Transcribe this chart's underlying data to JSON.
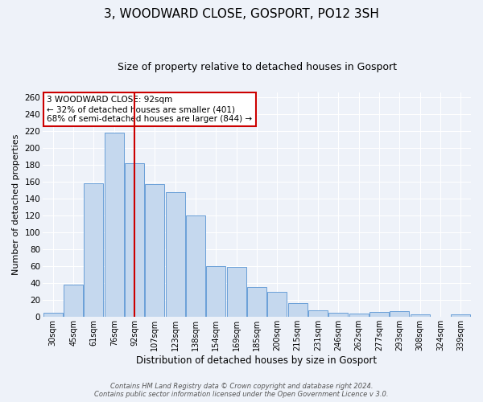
{
  "title": "3, WOODWARD CLOSE, GOSPORT, PO12 3SH",
  "subtitle": "Size of property relative to detached houses in Gosport",
  "xlabel": "Distribution of detached houses by size in Gosport",
  "ylabel": "Number of detached properties",
  "bar_labels": [
    "30sqm",
    "45sqm",
    "61sqm",
    "76sqm",
    "92sqm",
    "107sqm",
    "123sqm",
    "138sqm",
    "154sqm",
    "169sqm",
    "185sqm",
    "200sqm",
    "215sqm",
    "231sqm",
    "246sqm",
    "262sqm",
    "277sqm",
    "293sqm",
    "308sqm",
    "324sqm",
    "339sqm"
  ],
  "bar_values": [
    5,
    38,
    158,
    218,
    182,
    157,
    147,
    120,
    60,
    59,
    35,
    30,
    16,
    8,
    5,
    4,
    6,
    7,
    3,
    0,
    3
  ],
  "bar_color": "#c5d8ee",
  "bar_edge_color": "#6a9fd8",
  "vline_x_index": 4,
  "vline_color": "#cc0000",
  "ylim": [
    0,
    265
  ],
  "yticks": [
    0,
    20,
    40,
    60,
    80,
    100,
    120,
    140,
    160,
    180,
    200,
    220,
    240,
    260
  ],
  "annotation_title": "3 WOODWARD CLOSE: 92sqm",
  "annotation_line1": "← 32% of detached houses are smaller (401)",
  "annotation_line2": "68% of semi-detached houses are larger (844) →",
  "annotation_box_color": "#ffffff",
  "annotation_box_edge_color": "#cc0000",
  "footer_line1": "Contains HM Land Registry data © Crown copyright and database right 2024.",
  "footer_line2": "Contains public sector information licensed under the Open Government Licence v 3.0.",
  "background_color": "#eef2f9",
  "grid_color": "#ffffff",
  "title_fontsize": 11,
  "subtitle_fontsize": 9
}
